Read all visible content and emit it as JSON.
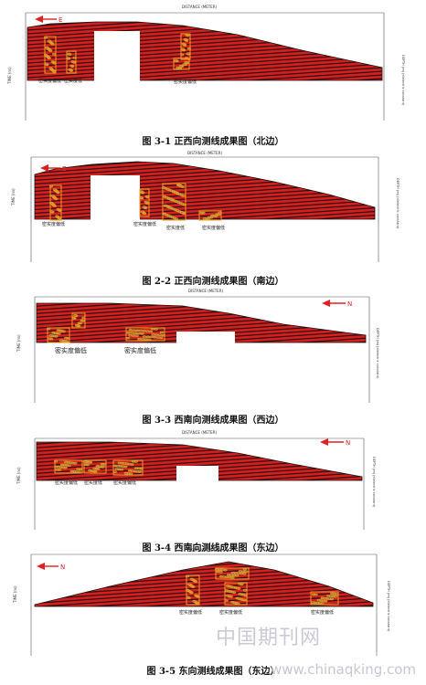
{
  "panels": [
    {
      "id": "3-1",
      "caption": "图 3-1  正西向测线成果图（北边）",
      "axis_top_title": "DISTANCE (METER)",
      "y_axis_title": "TIME (ns)",
      "right_axis_title": "DEPTH (m) (dielectric constant)",
      "arrow_label": "E",
      "arrow_side": "left",
      "annotations": [
        "密实度偏低",
        "密实度低",
        "密实度偏低"
      ]
    },
    {
      "id": "2-2",
      "caption": "图 2-2  正西向测线成果图（南边）",
      "axis_top_title": "DISTANCE (METER)",
      "y_axis_title": "TIME (ns)",
      "right_axis_title": "DEPTH (m) (dielectric constant)",
      "arrow_label": "E",
      "arrow_side": "left",
      "annotations": [
        "密实度偏低",
        "密实度偏低",
        "密实度低",
        "密实度偏低"
      ]
    },
    {
      "id": "3-3",
      "caption": "图 3-3  西南向测线成果图（西边）",
      "axis_top_title": "DISTANCE (METER)",
      "y_axis_title": "TIME (ns)",
      "right_axis_title": "DEPTH (m) (dielectric constant)",
      "arrow_label": "N",
      "arrow_side": "right",
      "annotations": [
        "密实度偏低",
        "密实度偏低"
      ]
    },
    {
      "id": "3-4",
      "caption": "图 3-4  西南向测线成果图（东边）",
      "axis_top_title": "DISTANCE (METER)",
      "y_axis_title": "TIME (ns)",
      "right_axis_title": "DEPTH (m) (dielectric constant)",
      "arrow_label": "N",
      "arrow_side": "right",
      "annotations": [
        "密实度偏低",
        "密实度低",
        "密实度偏低"
      ]
    },
    {
      "id": "3-5",
      "caption": "图 3-5  东向测线成果图（东边）",
      "axis_top_title": "DISTANCE (METER)",
      "y_axis_title": "TIME (ns)",
      "right_axis_title": "DEPTH (m) (dielectric constant)",
      "arrow_label": "N",
      "arrow_side": "left",
      "annotations": [
        "密实度偏低",
        "密实度偏低",
        "密实度偏低"
      ]
    }
  ],
  "watermark": {
    "chinese": "中国期刊网",
    "url": "www.chinaqking.com"
  },
  "colors": {
    "radar_red": "#d81e1e",
    "radar_dark": "#1a1010",
    "anomaly_green": "#2fb86a",
    "anomaly_blue": "#2b6fd8",
    "anomaly_box": "#f0a020",
    "arrow_red": "#e02020"
  }
}
